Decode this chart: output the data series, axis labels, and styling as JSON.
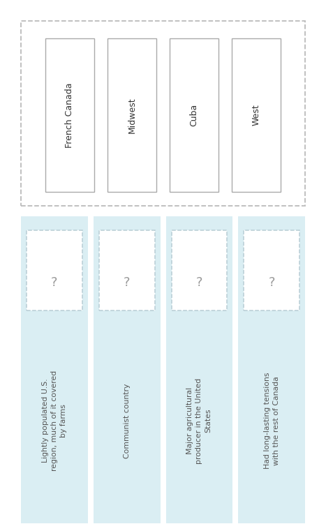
{
  "top_labels": [
    "French Canada",
    "Midwest",
    "Cuba",
    "West"
  ],
  "bottom_descriptions": [
    "Lightly populated U.S.\nregion, much of it covered\nby farms",
    "Communist country",
    "Major agricultural\nproducer in the United\nStates",
    "Had long-lasting tensions\nwith the rest of Canada"
  ],
  "question_mark": "?",
  "bg_color": "#ffffff",
  "top_section_bg": "#ffffff",
  "bottom_col_bg": "#daeef3",
  "card_bg": "#ffffff",
  "top_border_color": "#bbbbbb",
  "bottom_card_dash_color": "#b8cdd4",
  "text_color": "#333333",
  "desc_text_color": "#555555",
  "n_cols": 4,
  "fig_w": 4.67,
  "fig_h": 7.51,
  "dpi": 100
}
